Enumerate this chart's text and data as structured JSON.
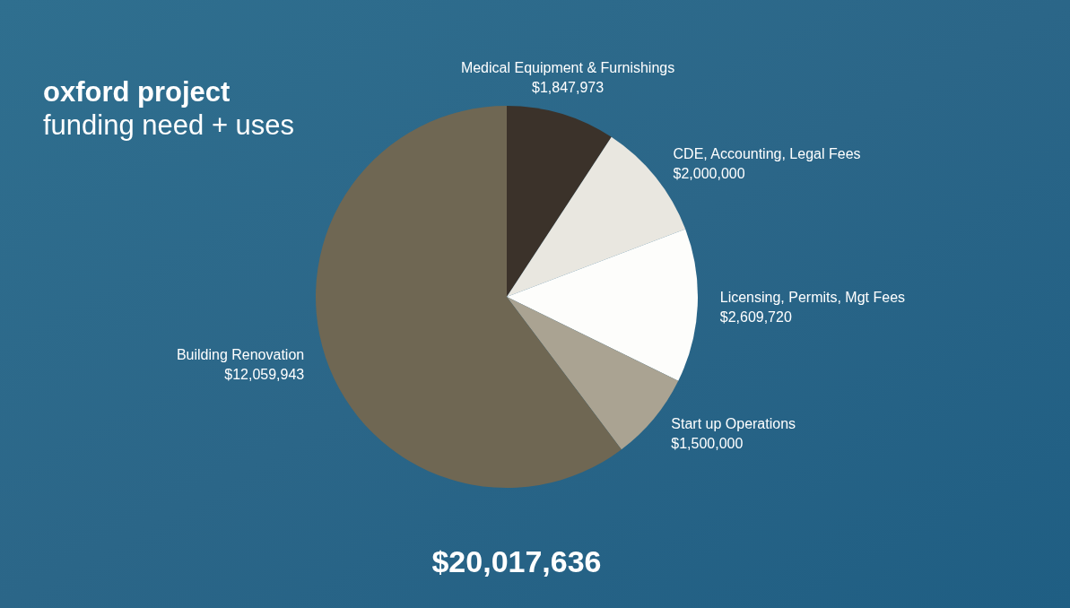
{
  "chart_data": {
    "type": "pie",
    "title": "oxford project",
    "subtitle": "funding need + uses",
    "categories": [
      "Medical Equipment & Furnishings",
      "CDE, Accounting, Legal Fees",
      "Licensing, Permits, Mgt Fees",
      "Start up Operations",
      "Building Renovation"
    ],
    "values": [
      1847973,
      2000000,
      2609720,
      1500000,
      12059943
    ],
    "value_labels": [
      "$1,847,973",
      "$2,000,000",
      "$2,609,720",
      "$1,500,000",
      "$12,059,943"
    ],
    "colors": [
      "#3b322a",
      "#e9e7e0",
      "#fdfdfb",
      "#aaa392",
      "#6f6753"
    ],
    "annotations": [
      "$20,017,636"
    ]
  }
}
